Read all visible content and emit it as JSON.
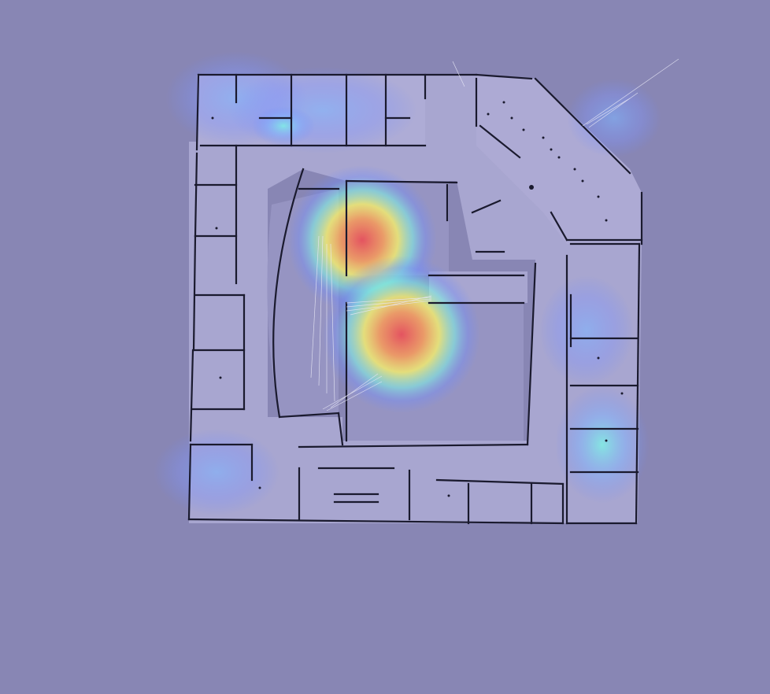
{
  "map": {
    "type": "occupancy-grid-floorplan-with-heatmap-overlay",
    "colors": {
      "background": "#8886b4",
      "floor": "#a8a6d0",
      "wall": "#1a1a2e",
      "heat_low": "#6f8cff",
      "heat_mid": "#7df5e6",
      "heat_warm": "#f7f06a",
      "heat_high": "#e8505b"
    },
    "heatmap_hotspots": [
      {
        "name": "hotspot-north-center",
        "intensity": 0.95
      },
      {
        "name": "hotspot-south-center",
        "intensity": 1.0
      },
      {
        "name": "hotspot-east-lower",
        "intensity": 0.55
      },
      {
        "name": "hotspot-north-west",
        "intensity": 0.35
      },
      {
        "name": "hotspot-north-east",
        "intensity": 0.3
      }
    ],
    "icons": [
      "laser-scan-rays-icon"
    ]
  }
}
